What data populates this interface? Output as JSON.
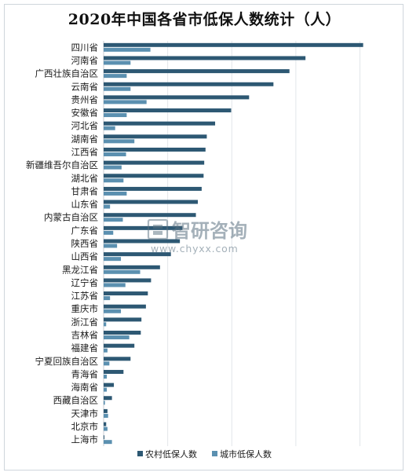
{
  "chart_data": {
    "type": "bar",
    "orientation": "horizontal",
    "title": "2020年中国各省市低保人数统计（人）",
    "categories": [
      "四川省",
      "河南省",
      "广西壮族自治区",
      "云南省",
      "贵州省",
      "安徽省",
      "河北省",
      "湖南省",
      "江西省",
      "新疆维吾尔自治区",
      "湖北省",
      "甘肃省",
      "山东省",
      "内蒙古自治区",
      "广东省",
      "陕西省",
      "山西省",
      "黑龙江省",
      "辽宁省",
      "江苏省",
      "重庆市",
      "浙江省",
      "吉林省",
      "福建省",
      "宁夏回族自治区",
      "青海省",
      "海南省",
      "西藏自治区",
      "天津市",
      "北京市",
      "上海市"
    ],
    "series": [
      {
        "name": "农村低保人数",
        "color": "#2d5873",
        "values": [
          4050000,
          3150000,
          2900000,
          2650000,
          2270000,
          1990000,
          1740000,
          1610000,
          1590000,
          1570000,
          1560000,
          1530000,
          1470000,
          1440000,
          1230000,
          1190000,
          1050000,
          880000,
          740000,
          690000,
          660000,
          590000,
          580000,
          480000,
          420000,
          310000,
          160000,
          130000,
          60000,
          40000,
          10000
        ]
      },
      {
        "name": "城市低保人数",
        "color": "#5b90b0",
        "values": [
          730000,
          420000,
          360000,
          420000,
          670000,
          360000,
          180000,
          480000,
          350000,
          280000,
          310000,
          360000,
          100000,
          300000,
          150000,
          210000,
          270000,
          570000,
          340000,
          100000,
          270000,
          40000,
          400000,
          60000,
          90000,
          50000,
          50000,
          20000,
          70000,
          60000,
          130000
        ]
      }
    ],
    "xlim": [
      0,
      4300000
    ],
    "grid": "vertical",
    "legend": "bottom-right"
  },
  "watermark": {
    "brand": "智研咨询",
    "url": "www.chyxx.com"
  }
}
